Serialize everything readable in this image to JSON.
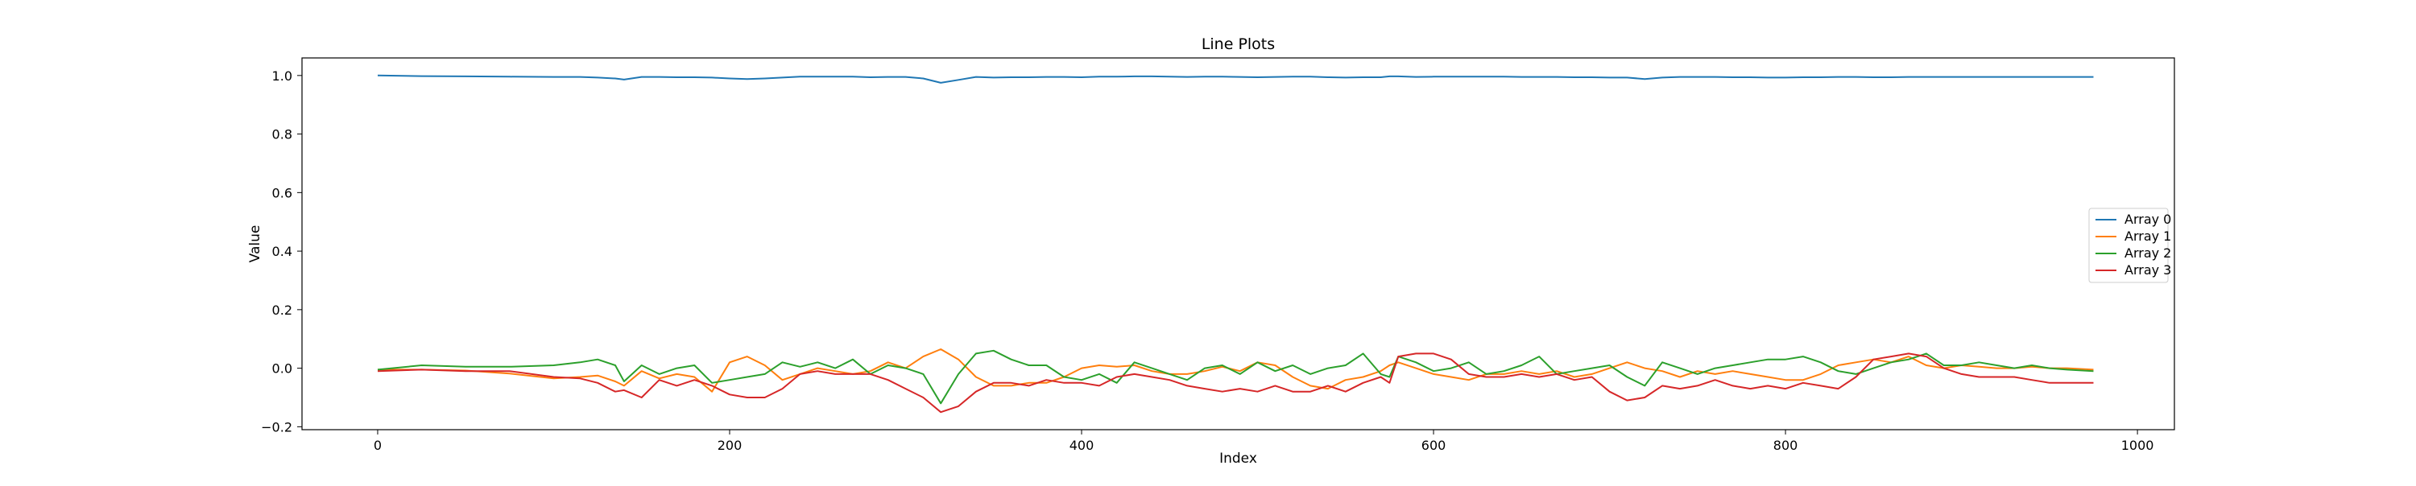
{
  "chart_data": {
    "type": "line",
    "title": "Line Plots",
    "xlabel": "Index",
    "ylabel": "Value",
    "xlim": [
      -43,
      1021
    ],
    "ylim": [
      -0.21,
      1.06
    ],
    "xticks": [
      0,
      200,
      400,
      600,
      800,
      1000
    ],
    "yticks": [
      -0.2,
      0.0,
      0.2,
      0.4,
      0.6,
      0.8,
      1.0
    ],
    "xtick_labels": [
      "0",
      "200",
      "400",
      "600",
      "800",
      "1000"
    ],
    "ytick_labels": [
      "−0.2",
      "0.0",
      "0.2",
      "0.4",
      "0.6",
      "0.8",
      "1.0"
    ],
    "grid": false,
    "legend_position": "center right",
    "x": [
      0,
      25,
      50,
      75,
      100,
      115,
      125,
      135,
      140,
      150,
      160,
      170,
      180,
      190,
      200,
      210,
      220,
      230,
      240,
      250,
      260,
      270,
      280,
      290,
      300,
      310,
      320,
      330,
      340,
      350,
      360,
      370,
      380,
      390,
      400,
      410,
      420,
      430,
      440,
      450,
      460,
      470,
      480,
      490,
      500,
      510,
      520,
      530,
      540,
      550,
      560,
      570,
      575,
      580,
      590,
      600,
      610,
      620,
      630,
      640,
      650,
      660,
      670,
      680,
      690,
      700,
      710,
      720,
      730,
      740,
      750,
      760,
      770,
      780,
      790,
      800,
      810,
      820,
      830,
      840,
      850,
      860,
      870,
      880,
      890,
      900,
      910,
      920,
      930,
      940,
      950,
      960,
      975
    ],
    "series": [
      {
        "name": "Array 0",
        "color": "#1f77b4",
        "values": [
          1.0,
          0.998,
          0.997,
          0.996,
          0.995,
          0.995,
          0.993,
          0.99,
          0.986,
          0.995,
          0.995,
          0.994,
          0.994,
          0.993,
          0.99,
          0.988,
          0.99,
          0.993,
          0.996,
          0.996,
          0.996,
          0.996,
          0.994,
          0.995,
          0.995,
          0.99,
          0.975,
          0.985,
          0.995,
          0.993,
          0.994,
          0.994,
          0.995,
          0.995,
          0.994,
          0.996,
          0.996,
          0.997,
          0.997,
          0.996,
          0.995,
          0.996,
          0.996,
          0.995,
          0.994,
          0.995,
          0.996,
          0.996,
          0.994,
          0.993,
          0.994,
          0.994,
          0.997,
          0.997,
          0.995,
          0.996,
          0.996,
          0.996,
          0.996,
          0.996,
          0.995,
          0.995,
          0.995,
          0.994,
          0.994,
          0.993,
          0.993,
          0.988,
          0.993,
          0.995,
          0.995,
          0.995,
          0.994,
          0.994,
          0.993,
          0.993,
          0.994,
          0.994,
          0.995,
          0.995,
          0.994,
          0.994,
          0.995,
          0.995,
          0.995,
          0.995,
          0.995,
          0.995,
          0.995,
          0.995,
          0.995,
          0.995,
          0.995
        ]
      },
      {
        "name": "Array 1",
        "color": "#ff7f0e",
        "values": [
          -0.005,
          -0.005,
          -0.008,
          -0.018,
          -0.035,
          -0.03,
          -0.025,
          -0.045,
          -0.06,
          -0.01,
          -0.035,
          -0.02,
          -0.03,
          -0.08,
          0.02,
          0.04,
          0.01,
          -0.04,
          -0.02,
          0.0,
          -0.01,
          -0.02,
          -0.01,
          0.02,
          0.0,
          0.04,
          0.065,
          0.03,
          -0.03,
          -0.06,
          -0.06,
          -0.05,
          -0.05,
          -0.03,
          0.0,
          0.01,
          0.005,
          0.01,
          -0.01,
          -0.02,
          -0.02,
          -0.01,
          0.005,
          -0.01,
          0.02,
          0.01,
          -0.03,
          -0.06,
          -0.07,
          -0.04,
          -0.03,
          -0.01,
          0.01,
          0.02,
          0.0,
          -0.02,
          -0.03,
          -0.04,
          -0.02,
          -0.02,
          -0.01,
          -0.02,
          -0.01,
          -0.03,
          -0.02,
          0.0,
          0.02,
          0.0,
          -0.01,
          -0.03,
          -0.01,
          -0.02,
          -0.01,
          -0.02,
          -0.03,
          -0.04,
          -0.04,
          -0.02,
          0.01,
          0.02,
          0.03,
          0.02,
          0.04,
          0.01,
          0.0,
          0.01,
          0.005,
          0.0,
          0.0,
          0.005,
          0.0,
          0.0,
          -0.005
        ]
      },
      {
        "name": "Array 2",
        "color": "#2ca02c",
        "values": [
          -0.005,
          0.01,
          0.005,
          0.005,
          0.01,
          0.02,
          0.03,
          0.01,
          -0.045,
          0.01,
          -0.02,
          0.0,
          0.01,
          -0.05,
          -0.04,
          -0.03,
          -0.02,
          0.02,
          0.005,
          0.02,
          0.0,
          0.03,
          -0.02,
          0.01,
          0.0,
          -0.02,
          -0.12,
          -0.02,
          0.05,
          0.06,
          0.03,
          0.01,
          0.01,
          -0.03,
          -0.04,
          -0.02,
          -0.05,
          0.02,
          0.0,
          -0.02,
          -0.04,
          0.0,
          0.01,
          -0.02,
          0.02,
          -0.01,
          0.01,
          -0.02,
          0.0,
          0.01,
          0.05,
          -0.02,
          -0.03,
          0.04,
          0.02,
          -0.01,
          0.0,
          0.02,
          -0.02,
          -0.01,
          0.01,
          0.04,
          -0.02,
          -0.01,
          0.0,
          0.01,
          -0.03,
          -0.06,
          0.02,
          0.0,
          -0.02,
          0.0,
          0.01,
          0.02,
          0.03,
          0.03,
          0.04,
          0.02,
          -0.01,
          -0.02,
          0.0,
          0.02,
          0.03,
          0.05,
          0.01,
          0.01,
          0.02,
          0.01,
          0.0,
          0.01,
          0.0,
          -0.005,
          -0.01
        ]
      },
      {
        "name": "Array 3",
        "color": "#d62728",
        "values": [
          -0.01,
          -0.005,
          -0.01,
          -0.01,
          -0.03,
          -0.035,
          -0.05,
          -0.08,
          -0.075,
          -0.1,
          -0.04,
          -0.06,
          -0.04,
          -0.06,
          -0.09,
          -0.1,
          -0.1,
          -0.07,
          -0.02,
          -0.01,
          -0.02,
          -0.02,
          -0.02,
          -0.04,
          -0.07,
          -0.1,
          -0.15,
          -0.13,
          -0.08,
          -0.05,
          -0.05,
          -0.06,
          -0.04,
          -0.05,
          -0.05,
          -0.06,
          -0.03,
          -0.02,
          -0.03,
          -0.04,
          -0.06,
          -0.07,
          -0.08,
          -0.07,
          -0.08,
          -0.06,
          -0.08,
          -0.08,
          -0.06,
          -0.08,
          -0.05,
          -0.03,
          -0.05,
          0.04,
          0.05,
          0.05,
          0.03,
          -0.02,
          -0.03,
          -0.03,
          -0.02,
          -0.03,
          -0.02,
          -0.04,
          -0.03,
          -0.08,
          -0.11,
          -0.1,
          -0.06,
          -0.07,
          -0.06,
          -0.04,
          -0.06,
          -0.07,
          -0.06,
          -0.07,
          -0.05,
          -0.06,
          -0.07,
          -0.03,
          0.03,
          0.04,
          0.05,
          0.04,
          0.0,
          -0.02,
          -0.03,
          -0.03,
          -0.03,
          -0.04,
          -0.05,
          -0.05,
          -0.05
        ]
      }
    ]
  }
}
